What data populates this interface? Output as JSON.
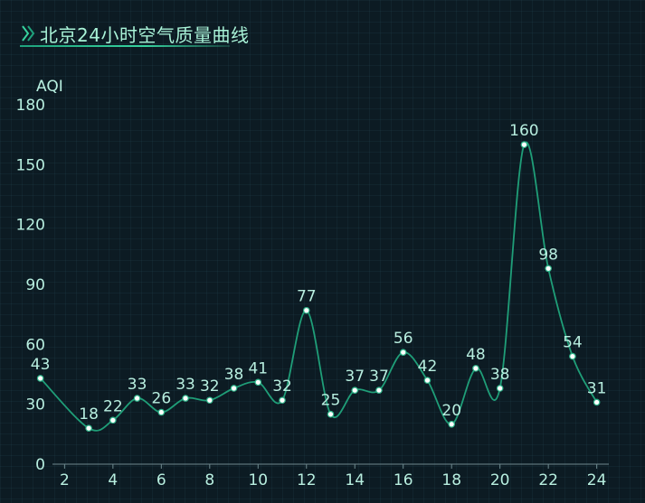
{
  "title": "北京24小时空气质量曲线",
  "colors": {
    "line": "#1f9e78",
    "point_fill": "#ffffff",
    "point_stroke": "#2fb58a",
    "axis": "#6f8a8f",
    "text": "#b8efe0",
    "title": "#a9f3d8"
  },
  "icons": {
    "title_marker": "double-chevron-icon"
  },
  "chart_data": {
    "type": "line",
    "smooth": true,
    "title": "北京24小时空气质量曲线",
    "ylabel": "AQI",
    "xlabel": "",
    "ylim": [
      0,
      180
    ],
    "xlim": [
      1.5,
      24.5
    ],
    "y_ticks": [
      0,
      30,
      60,
      90,
      120,
      150,
      180
    ],
    "x_ticks": [
      2,
      4,
      6,
      8,
      10,
      12,
      14,
      16,
      18,
      20,
      22,
      24
    ],
    "grid": false,
    "x": [
      1,
      3,
      4,
      5,
      6,
      7,
      8,
      9,
      10,
      11,
      12,
      13,
      14,
      15,
      16,
      17,
      18,
      19,
      20,
      21,
      22,
      23,
      24
    ],
    "series": [
      {
        "values": [
          43,
          18,
          22,
          33,
          26,
          33,
          32,
          38,
          41,
          32,
          77,
          25,
          37,
          37,
          56,
          42,
          20,
          48,
          38,
          160,
          98,
          54,
          31
        ]
      }
    ]
  }
}
